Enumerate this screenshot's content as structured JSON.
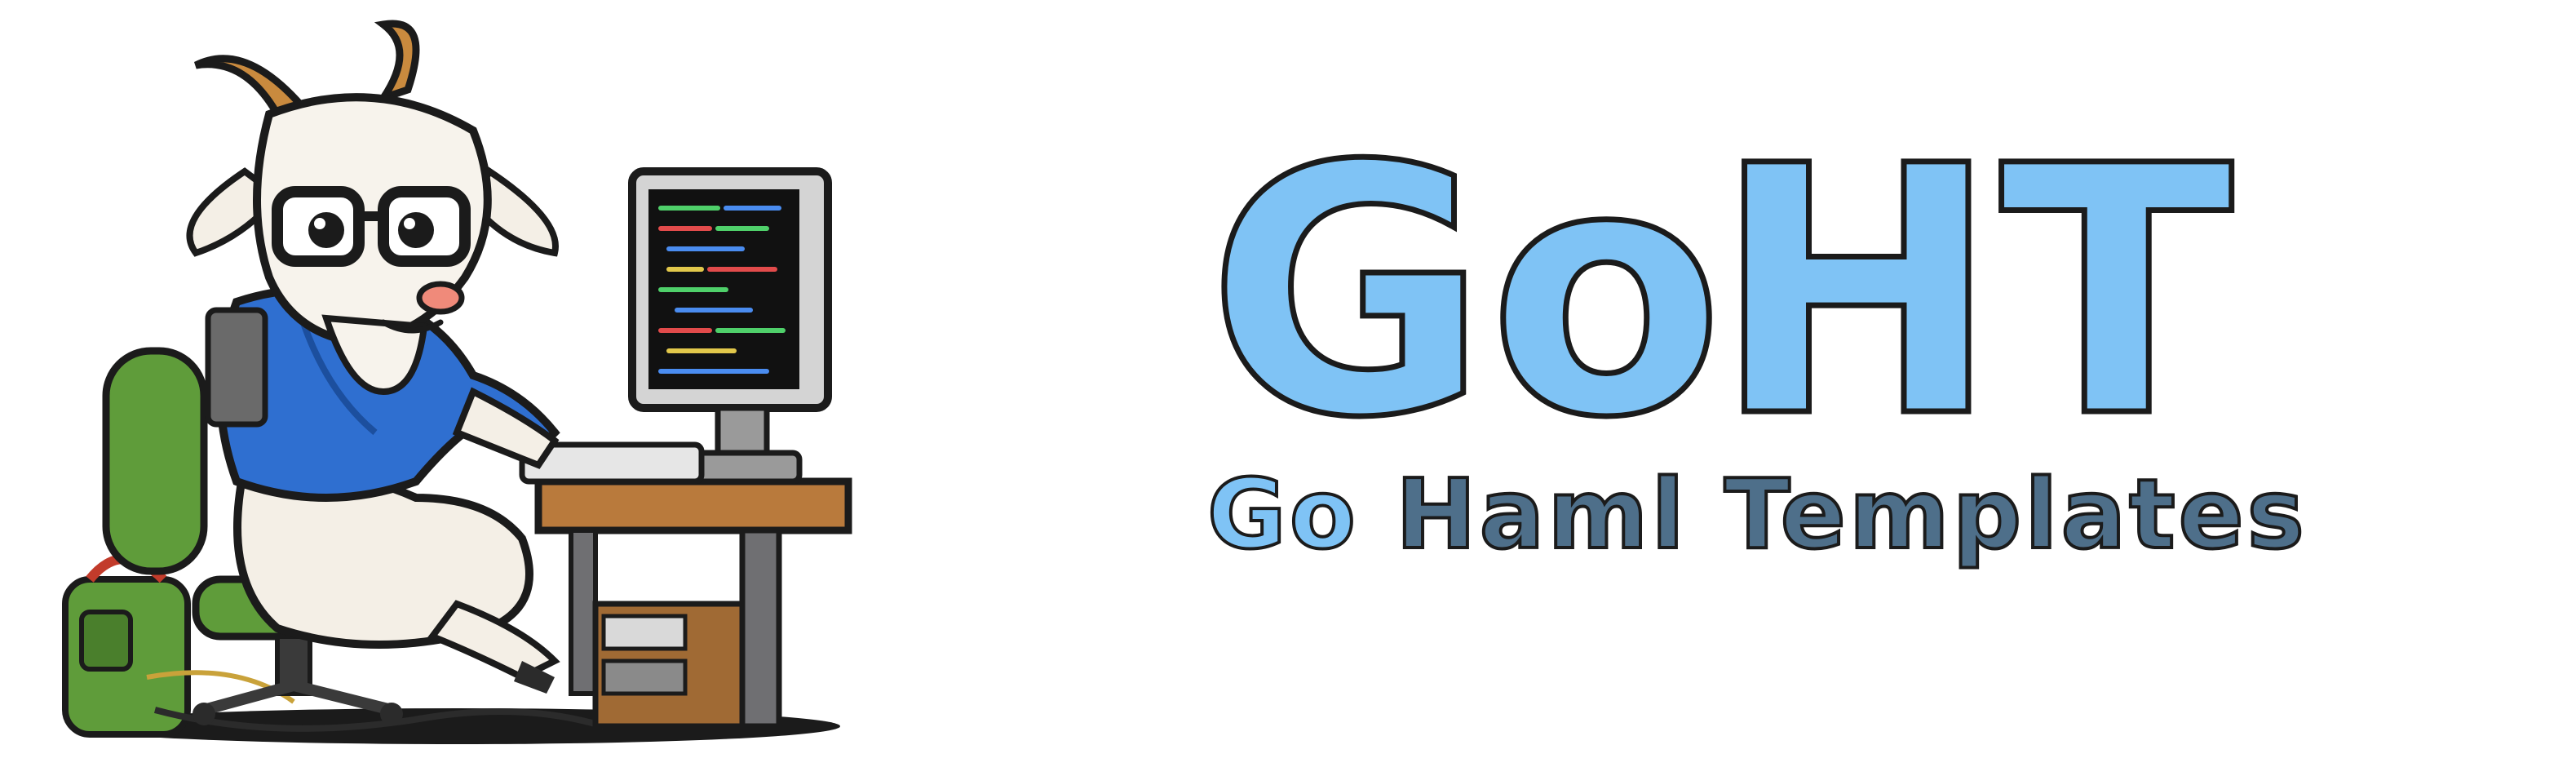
{
  "brand": {
    "title": {
      "part1": "Go",
      "part2": "HT"
    },
    "subtitle": {
      "go": "Go",
      "rest": "Haml Templates"
    }
  },
  "colors": {
    "title_fill": "#7fc3f5",
    "subtitle_accent": "#7fc3f5",
    "subtitle_main": "#4e6f8a",
    "outline": "#1b1b1b"
  },
  "mascot": {
    "subject": "goat-programmer-illustration"
  }
}
